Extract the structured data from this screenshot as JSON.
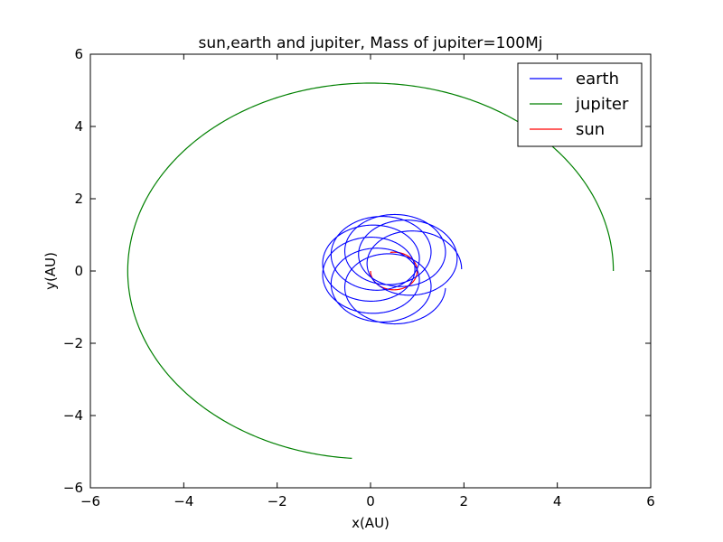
{
  "chart_data": {
    "type": "line",
    "title": "sun,earth and jupiter, Mass of jupiter=100Mj",
    "xlabel": "x(AU)",
    "ylabel": "y(AU)",
    "xlim": [
      -6,
      6
    ],
    "ylim": [
      -6,
      6
    ],
    "xticks": [
      -6,
      -4,
      -2,
      0,
      2,
      4,
      6
    ],
    "yticks": [
      -6,
      -4,
      -2,
      0,
      2,
      4,
      6
    ],
    "xtick_labels": [
      "−6",
      "−4",
      "−2",
      "0",
      "2",
      "4",
      "6"
    ],
    "ytick_labels": [
      "−6",
      "−4",
      "−2",
      "0",
      "2",
      "4",
      "6"
    ],
    "grid": false,
    "legend_position": "top-right",
    "series": [
      {
        "name": "earth",
        "color": "#0000ff",
        "curve": "precessing ellipse loops",
        "loops": 8,
        "x": [
          1.0,
          0.2,
          -1.2,
          -0.4,
          1.0,
          2.0,
          1.3,
          0.0,
          -1.0,
          0.5,
          1.9
        ],
        "y": [
          0.0,
          1.2,
          0.2,
          -1.2,
          -0.7,
          0.3,
          1.4,
          1.0,
          -0.4,
          -1.3,
          0.0
        ]
      },
      {
        "name": "jupiter",
        "color": "#008000",
        "curve": "arc",
        "x": [
          5.2,
          3.68,
          0.0,
          -3.68,
          -5.2,
          -3.68,
          -0.4
        ],
        "y": [
          0.0,
          3.68,
          5.2,
          3.68,
          0.0,
          -3.68,
          -5.2
        ]
      },
      {
        "name": "sun",
        "color": "#ff0000",
        "curve": "arc",
        "x": [
          0.0,
          0.12,
          0.5,
          0.88,
          1.0,
          0.88,
          0.6
        ],
        "y": [
          0.0,
          -0.38,
          -0.52,
          -0.38,
          0.0,
          0.38,
          0.52
        ]
      }
    ]
  }
}
